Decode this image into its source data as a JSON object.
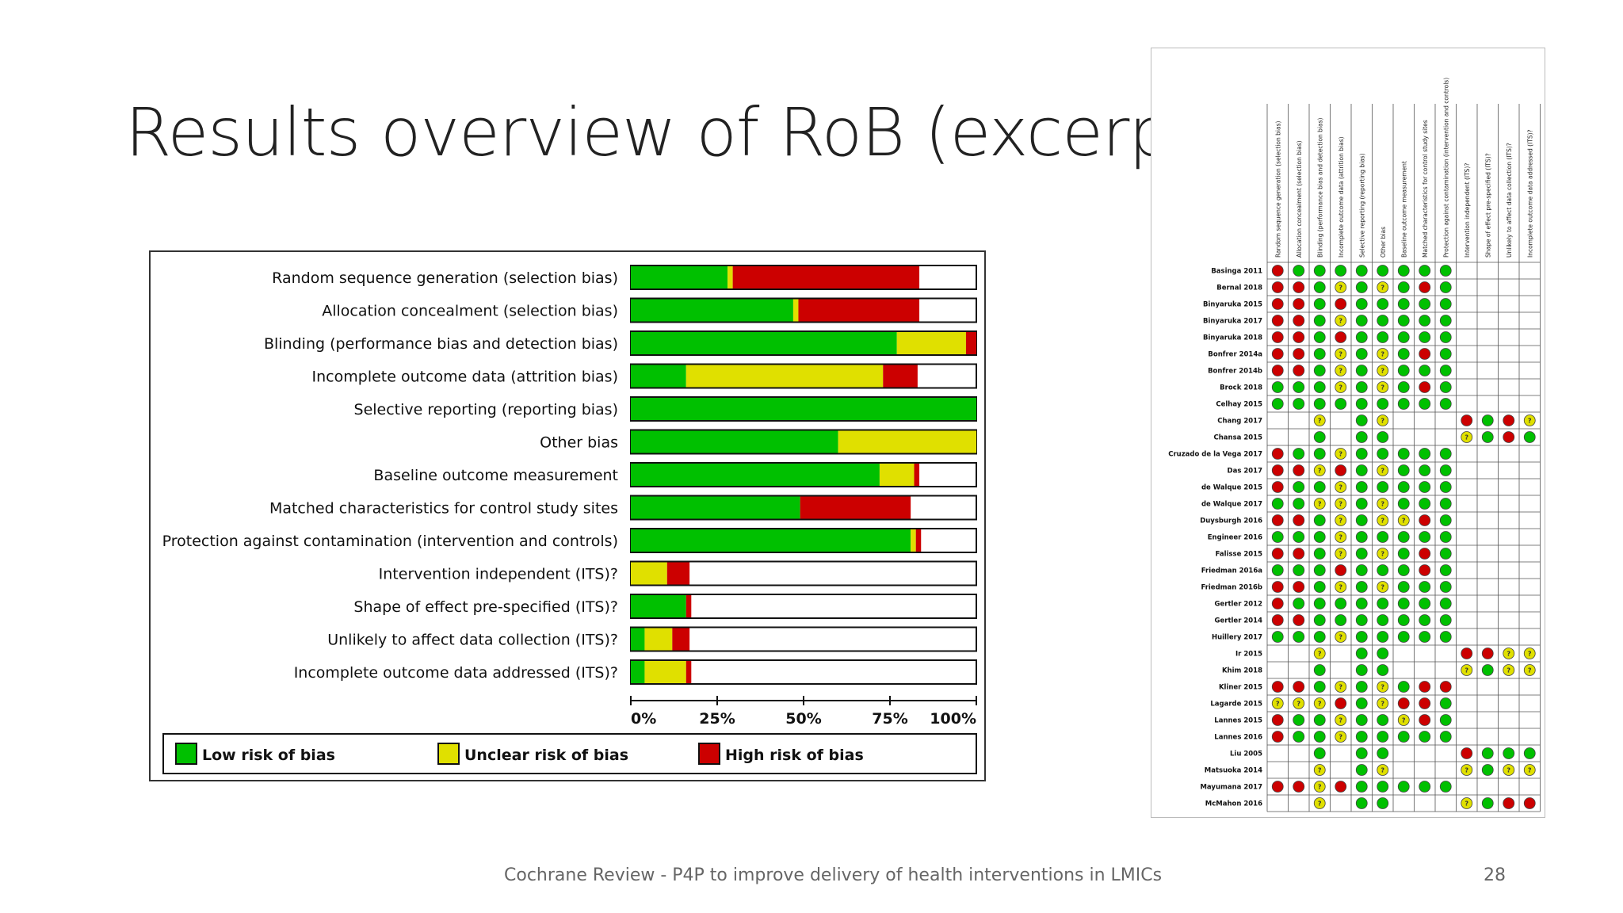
{
  "slide": {
    "title": "Results overview of RoB (excerpt)",
    "footer": "Cochrane Review - P4P to improve delivery of health interventions in LMICs",
    "page_number": "28"
  },
  "colors": {
    "low": "#00c000",
    "unclear": "#e0e000",
    "high": "#cc0000",
    "empty": "#ffffff"
  },
  "chart_data": [
    {
      "type": "bar",
      "orientation": "horizontal",
      "stacked": true,
      "categories": [
        "Random sequence generation (selection bias)",
        "Allocation concealment (selection bias)",
        "Blinding (performance bias and detection bias)",
        "Incomplete outcome data (attrition bias)",
        "Selective reporting (reporting bias)",
        "Other bias",
        "Baseline outcome measurement",
        "Matched characteristics for control study sites",
        "Protection against contamination (intervention and controls)",
        "Intervention independent (ITS)?",
        "Shape of effect pre-specified (ITS)?",
        "Unlikely to affect data collection (ITS)?",
        "Incomplete outcome data addressed (ITS)?"
      ],
      "series": [
        {
          "name": "Low risk of bias",
          "values": [
            28,
            47,
            77,
            16,
            100,
            60,
            72,
            49,
            81,
            0,
            16,
            4,
            4
          ]
        },
        {
          "name": "Unclear risk of bias",
          "values": [
            1.5,
            1.5,
            20,
            57,
            0,
            40,
            10,
            0,
            1.5,
            10.5,
            0,
            8,
            12
          ]
        },
        {
          "name": "High risk of bias",
          "values": [
            54,
            35,
            3,
            10,
            0,
            0,
            1.5,
            32,
            1.5,
            6.5,
            1.5,
            5,
            1.5
          ]
        }
      ],
      "x_ticks": [
        "0%",
        "25%",
        "50%",
        "75%",
        "100%"
      ],
      "xlim": [
        0,
        100
      ],
      "legend_position": "bottom"
    },
    {
      "type": "table",
      "columns": [
        "Random sequence generation (selection bias)",
        "Allocation concealment (selection bias)",
        "Blinding (performance bias and detection bias)",
        "Incomplete outcome data (attrition bias)",
        "Selective reporting (reporting bias)",
        "Other bias",
        "Baseline outcome measurement",
        "Matched characteristics for control study sites",
        "Protection against contamination (intervention and controls)",
        "Intervention independent (ITS)?",
        "Shape of effect pre-specified (ITS)?",
        "Unlikely to affect data collection (ITS)?",
        "Incomplete outcome data addressed (ITS)?"
      ],
      "rows": [
        {
          "study": "Basinga 2011",
          "cells": "HLLLLLLLL...."
        },
        {
          "study": "Bernal 2018",
          "cells": "HHL?L?LHL...."
        },
        {
          "study": "Binyaruka 2015",
          "cells": "HHLHLLLLL...."
        },
        {
          "study": "Binyaruka 2017",
          "cells": "HHL?LLLLL...."
        },
        {
          "study": "Binyaruka 2018",
          "cells": "HHLHLLLLL...."
        },
        {
          "study": "Bonfrer 2014a",
          "cells": "HHL?L?LHL...."
        },
        {
          "study": "Bonfrer 2014b",
          "cells": "HHL?L?LLL...."
        },
        {
          "study": "Brock 2018",
          "cells": "LLL?L?LHL...."
        },
        {
          "study": "Celhay 2015",
          "cells": "LLLLLLLLL...."
        },
        {
          "study": "Chang 2017",
          "cells": "..?.L?...HLH?"
        },
        {
          "study": "Chansa 2015",
          "cells": "..L.LL...?LHL"
        },
        {
          "study": "Cruzado de la Vega 2017",
          "cells": "HLL?LLLLL...."
        },
        {
          "study": "Das 2017",
          "cells": "HH?HL?LLL...."
        },
        {
          "study": "de Walque 2015",
          "cells": "HLL?LLLLL...."
        },
        {
          "study": "de Walque 2017",
          "cells": "LL??L?LLL...."
        },
        {
          "study": "Duysburgh 2016",
          "cells": "HHL?L??HL...."
        },
        {
          "study": "Engineer 2016",
          "cells": "LLL?LLLLL...."
        },
        {
          "study": "Falisse 2015",
          "cells": "HHL?L?LHL...."
        },
        {
          "study": "Friedman 2016a",
          "cells": "LLLHLLLHL...."
        },
        {
          "study": "Friedman 2016b",
          "cells": "HHL?L?LLL...."
        },
        {
          "study": "Gertler 2012",
          "cells": "HLLLLLLLL...."
        },
        {
          "study": "Gertler 2014",
          "cells": "HHLLLLLLL...."
        },
        {
          "study": "Huillery 2017",
          "cells": "LLL?LLLLL...."
        },
        {
          "study": "Ir 2015",
          "cells": "..?.LL...HH??"
        },
        {
          "study": "Khim 2018",
          "cells": "..L.LL...?L??"
        },
        {
          "study": "Kliner 2015",
          "cells": "HHL?L?LHH...."
        },
        {
          "study": "Lagarde 2015",
          "cells": "???HL?HHL...."
        },
        {
          "study": "Lannes 2015",
          "cells": "HLL?LL?HL...."
        },
        {
          "study": "Lannes 2016",
          "cells": "HLL?LLLLL...."
        },
        {
          "study": "Liu 2005",
          "cells": "..L.LL...HLLL"
        },
        {
          "study": "Matsuoka 2014",
          "cells": "..?.L?...?L??"
        },
        {
          "study": "Mayumana 2017",
          "cells": "HH?HLLLLL...."
        },
        {
          "study": "McMahon 2016",
          "cells": "..?.LL...?LHH"
        }
      ]
    }
  ]
}
